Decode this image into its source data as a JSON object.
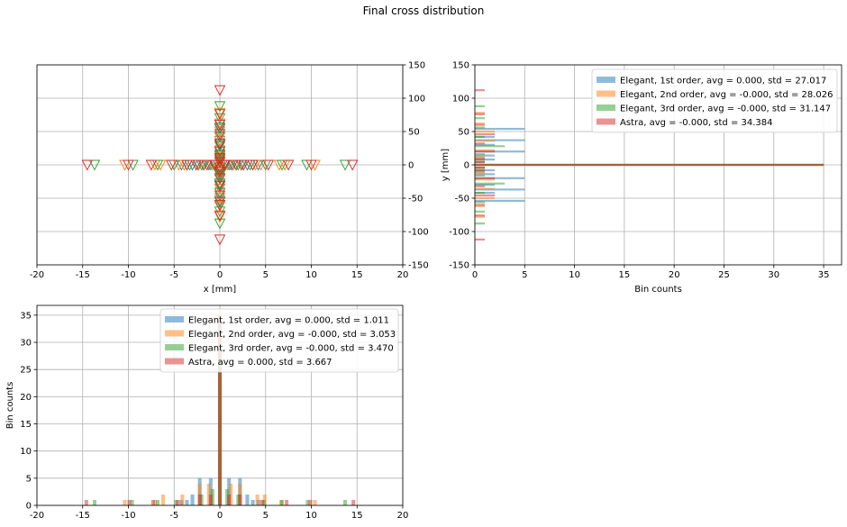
{
  "figure": {
    "title": "Final cross distribution"
  },
  "colors": {
    "blue": "#1f77b4",
    "orange": "#ff7f0e",
    "green": "#2ca02c",
    "red": "#d62728",
    "grid": "#b0b0b0"
  },
  "chart_data": [
    {
      "id": "scatter",
      "type": "scatter",
      "title": "",
      "xlabel": "x [mm]",
      "ylabel": "",
      "xlim": [
        -20,
        20
      ],
      "ylim": [
        -150,
        150
      ],
      "xticks": [
        -20,
        -15,
        -10,
        -5,
        0,
        5,
        10,
        15,
        20
      ],
      "yticks": [
        -150,
        -100,
        -50,
        0,
        50,
        100,
        150
      ],
      "yaxis_side": "right",
      "grid": true,
      "marker": "triangle-down-open",
      "series": [
        {
          "color": "#1f77b4",
          "horizontal_x": [
            -4.2,
            -3.6,
            -3.0,
            -2.4,
            -1.8,
            -1.2,
            -0.6,
            0.6,
            1.2,
            1.8,
            2.4,
            3.0,
            3.6,
            4.2
          ],
          "vertical_y": [
            -54,
            -42,
            -36,
            -30,
            -20,
            -14,
            -8,
            -4,
            4,
            8,
            14,
            20,
            30,
            36,
            42,
            54
          ]
        },
        {
          "color": "#ff7f0e",
          "horizontal_x": [
            -10.4,
            -7.1,
            -6.5,
            -4.5,
            -3.9,
            -2.3,
            -1.7,
            -0.8,
            0.8,
            1.7,
            2.3,
            3.9,
            4.5,
            6.5,
            7.1,
            10.4
          ],
          "vertical_y": [
            -78,
            -62,
            -50,
            -36,
            -22,
            -12,
            -6,
            6,
            12,
            22,
            36,
            50,
            62,
            78
          ]
        },
        {
          "color": "#2ca02c",
          "horizontal_x": [
            -13.7,
            -9.5,
            -6.8,
            -5.0,
            -3.3,
            -2.0,
            -1.0,
            1.0,
            2.0,
            3.3,
            5.0,
            6.8,
            9.5,
            13.7
          ],
          "vertical_y": [
            -88,
            -70,
            -56,
            -42,
            -28,
            -16,
            -8,
            8,
            16,
            28,
            42,
            56,
            70,
            88
          ]
        },
        {
          "color": "#d62728",
          "horizontal_x": [
            -14.5,
            -10.0,
            -7.5,
            -5.3,
            -3.6,
            -2.6,
            -1.4,
            -0.5,
            0.5,
            1.4,
            2.6,
            3.6,
            5.3,
            7.5,
            10.0,
            14.5
          ],
          "vertical_y": [
            -112,
            -76,
            -60,
            -46,
            -32,
            -20,
            -10,
            -4,
            4,
            10,
            20,
            32,
            46,
            60,
            76,
            112
          ]
        }
      ]
    },
    {
      "id": "hist_y",
      "type": "bar",
      "orientation": "horizontal",
      "title": "",
      "xlabel": "Bin counts",
      "ylabel": "y [mm]",
      "xlim": [
        0,
        36.8
      ],
      "ylim": [
        -150,
        150
      ],
      "xticks": [
        0,
        5,
        10,
        15,
        20,
        25,
        30,
        35
      ],
      "yticks": [
        -150,
        -100,
        -50,
        0,
        50,
        100,
        150
      ],
      "grid": true,
      "legend": "top-right",
      "bin_height": 3,
      "series": [
        {
          "name": "Elegant, 1st order, avg = 0.000, std = 27.017",
          "color": "#1f77b4",
          "bins": [
            [
              -54,
              5
            ],
            [
              -42,
              2
            ],
            [
              -37,
              5
            ],
            [
              -30,
              2
            ],
            [
              -20,
              5
            ],
            [
              -14,
              2
            ],
            [
              -8,
              2
            ],
            [
              -4,
              1
            ],
            [
              0,
              35
            ],
            [
              4,
              1
            ],
            [
              8,
              2
            ],
            [
              14,
              2
            ],
            [
              20,
              5
            ],
            [
              30,
              2
            ],
            [
              37,
              5
            ],
            [
              42,
              2
            ],
            [
              54,
              5
            ]
          ]
        },
        {
          "name": "Elegant, 2nd order, avg = -0.000, std = 28.026",
          "color": "#ff7f0e",
          "bins": [
            [
              -78,
              1
            ],
            [
              -62,
              1
            ],
            [
              -50,
              2
            ],
            [
              -36,
              2
            ],
            [
              -22,
              2
            ],
            [
              -12,
              1
            ],
            [
              -6,
              1
            ],
            [
              0,
              35
            ],
            [
              6,
              1
            ],
            [
              12,
              1
            ],
            [
              22,
              2
            ],
            [
              36,
              2
            ],
            [
              50,
              2
            ],
            [
              62,
              1
            ],
            [
              78,
              1
            ]
          ]
        },
        {
          "name": "Elegant, 3rd order, avg = -0.000, std = 31.147",
          "color": "#2ca02c",
          "bins": [
            [
              -88,
              1
            ],
            [
              -70,
              1
            ],
            [
              -56,
              1
            ],
            [
              -42,
              1
            ],
            [
              -28,
              3
            ],
            [
              -16,
              1
            ],
            [
              -8,
              1
            ],
            [
              0,
              35
            ],
            [
              8,
              1
            ],
            [
              16,
              1
            ],
            [
              28,
              3
            ],
            [
              42,
              1
            ],
            [
              56,
              1
            ],
            [
              70,
              1
            ],
            [
              88,
              1
            ]
          ]
        },
        {
          "name": "Astra, avg = -0.000, std = 34.384",
          "color": "#d62728",
          "bins": [
            [
              -112,
              1
            ],
            [
              -76,
              1
            ],
            [
              -60,
              1
            ],
            [
              -46,
              2
            ],
            [
              -32,
              1
            ],
            [
              -20,
              2
            ],
            [
              -10,
              1
            ],
            [
              -4,
              1
            ],
            [
              0,
              35
            ],
            [
              4,
              1
            ],
            [
              10,
              1
            ],
            [
              20,
              2
            ],
            [
              32,
              1
            ],
            [
              46,
              2
            ],
            [
              60,
              1
            ],
            [
              76,
              1
            ],
            [
              112,
              1
            ]
          ]
        }
      ]
    },
    {
      "id": "hist_x",
      "type": "bar",
      "orientation": "vertical",
      "title": "",
      "xlabel": "",
      "ylabel": "Bin counts",
      "xlim": [
        -20,
        20
      ],
      "ylim": [
        0,
        36.8
      ],
      "xticks": [
        -20,
        -15,
        -10,
        -5,
        0,
        5,
        10,
        15,
        20
      ],
      "yticks": [
        0,
        5,
        10,
        15,
        20,
        25,
        30,
        35
      ],
      "grid": true,
      "legend": "top-right",
      "bin_width": 0.4,
      "series": [
        {
          "name": "Elegant, 1st order, avg = 0.000, std = 1.011",
          "color": "#1f77b4",
          "bins": [
            [
              -4.2,
              1
            ],
            [
              -3.6,
              1
            ],
            [
              -3.0,
              2
            ],
            [
              -2.2,
              5
            ],
            [
              -1.0,
              5
            ],
            [
              0,
              35
            ],
            [
              1.0,
              5
            ],
            [
              2.2,
              5
            ],
            [
              3.0,
              2
            ],
            [
              3.6,
              1
            ],
            [
              4.2,
              1
            ]
          ]
        },
        {
          "name": "Elegant, 2nd order, avg = -0.000, std = 3.053",
          "color": "#ff7f0e",
          "bins": [
            [
              -10.4,
              1
            ],
            [
              -7.1,
              1
            ],
            [
              -6.2,
              2
            ],
            [
              -4.1,
              2
            ],
            [
              -2.2,
              4
            ],
            [
              -1.2,
              4
            ],
            [
              0,
              35
            ],
            [
              1.2,
              4
            ],
            [
              2.2,
              4
            ],
            [
              4.1,
              2
            ],
            [
              4.9,
              2
            ],
            [
              6.7,
              1
            ],
            [
              10.4,
              1
            ]
          ]
        },
        {
          "name": "Elegant, 3rd order, avg = -0.000, std = 3.470",
          "color": "#2ca02c",
          "bins": [
            [
              -13.7,
              1
            ],
            [
              -9.6,
              1
            ],
            [
              -6.8,
              1
            ],
            [
              -4.8,
              1
            ],
            [
              -2.0,
              2
            ],
            [
              -0.8,
              3
            ],
            [
              0,
              35
            ],
            [
              0.8,
              3
            ],
            [
              2.0,
              2
            ],
            [
              4.8,
              1
            ],
            [
              6.8,
              1
            ],
            [
              9.6,
              1
            ],
            [
              13.7,
              1
            ]
          ]
        },
        {
          "name": "Astra, avg = 0.000, std = 3.667",
          "color": "#d62728",
          "bins": [
            [
              -14.6,
              1
            ],
            [
              -9.9,
              1
            ],
            [
              -7.3,
              1
            ],
            [
              -4.6,
              1
            ],
            [
              -2.2,
              2
            ],
            [
              -1.0,
              2
            ],
            [
              0,
              35
            ],
            [
              1.0,
              2
            ],
            [
              2.2,
              2
            ],
            [
              4.6,
              1
            ],
            [
              7.3,
              1
            ],
            [
              9.9,
              1
            ],
            [
              14.6,
              1
            ]
          ]
        }
      ]
    }
  ]
}
